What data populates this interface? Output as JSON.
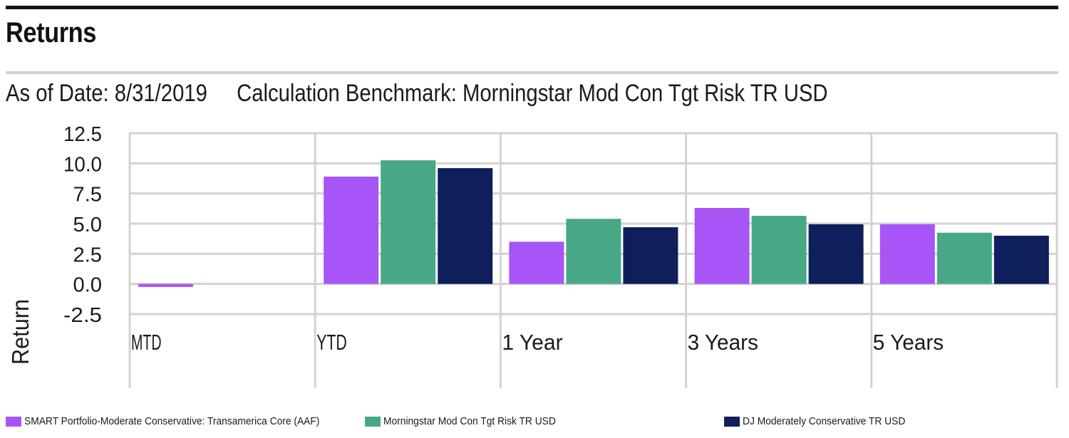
{
  "header": {
    "title": "Returns",
    "as_of": "As of Date: 8/31/2019",
    "benchmark": "Calculation Benchmark: Morningstar Mod Con Tgt Risk TR USD"
  },
  "colors": {
    "portfolio": "#a855f7",
    "benchmark": "#48a886",
    "index": "#0f1f5c",
    "grid": "#d3d3d3"
  },
  "chart_data": {
    "type": "bar",
    "ylabel": "Return",
    "xlabel": "",
    "ylim": [
      -2.5,
      12.5
    ],
    "yticks": [
      "12.5",
      "10.0",
      "7.5",
      "5.0",
      "2.5",
      "0.0",
      "-2.5"
    ],
    "ytick_values": [
      12.5,
      10.0,
      7.5,
      5.0,
      2.5,
      0.0,
      -2.5
    ],
    "grid": true,
    "legend_position": "bottom",
    "categories": [
      "MTD",
      "YTD",
      "1 Year",
      "3 Years",
      "5 Years"
    ],
    "series": [
      {
        "name": "SMART Portfolio-Moderate Conservative: Transamerica Core (AAF)",
        "color_key": "portfolio",
        "values": [
          -0.25,
          8.9,
          3.5,
          6.3,
          4.95
        ]
      },
      {
        "name": "Morningstar Mod Con Tgt Risk TR USD",
        "color_key": "benchmark",
        "values": [
          null,
          10.25,
          5.4,
          5.65,
          4.25
        ]
      },
      {
        "name": "DJ Moderately Conservative TR USD",
        "color_key": "index",
        "values": [
          null,
          9.6,
          4.7,
          4.95,
          4.0
        ]
      }
    ]
  }
}
